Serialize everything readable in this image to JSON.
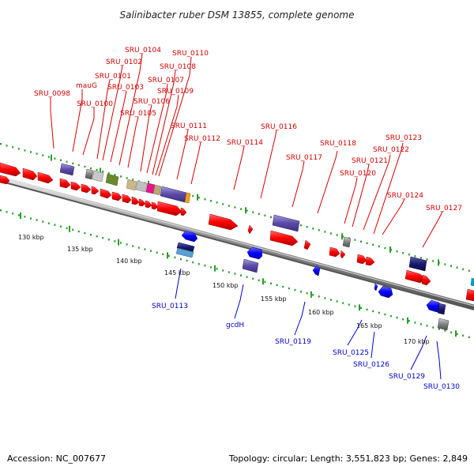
{
  "title": "Salinibacter ruber DSM 13855, complete genome",
  "footer": {
    "accession": "Accession: NC_007677",
    "stats": "Topology: circular; Length: 3,551,823 bp; Genes: 2,849"
  },
  "scale_labels": [
    "130 kbp",
    "135 kbp",
    "140 kbp",
    "145 kbp",
    "150 kbp",
    "155 kbp",
    "160 kbp",
    "165 kbp",
    "170 kbp"
  ],
  "labels_top": [
    "SRU_0098",
    "mauG",
    "SRU_0100",
    "SRU_0101",
    "SRU_0102",
    "SRU_0103",
    "SRU_0104",
    "SRU_0105",
    "SRU_0106",
    "SRU_0107",
    "SRU_0108",
    "SRU_0109",
    "SRU_0110",
    "SRU_0111",
    "SRU_0112",
    "SRU_0114",
    "SRU_0116",
    "SRU_0117",
    "SRU_0118",
    "SRU_0120",
    "SRU_0121",
    "SRU_0122",
    "SRU_0123",
    "SRU_0124",
    "SRU_0127"
  ],
  "labels_bottom": [
    "SRU_0113",
    "gcdH",
    "SRU_0119",
    "SRU_0125",
    "SRU_0126",
    "SRU_0129",
    "SRU_0130"
  ],
  "colors": {
    "forward": "#ff0000",
    "reverse": "#0000ff",
    "label_forward": "#d40000",
    "label_reverse": "#0000cc",
    "backbone": "#999999",
    "scale": "#2a9d2a"
  }
}
